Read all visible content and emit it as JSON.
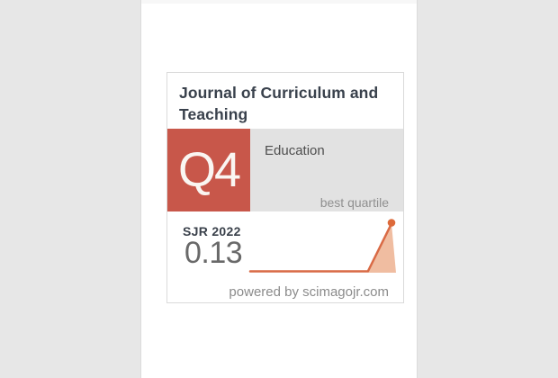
{
  "colors": {
    "page_bg": "#e7e7e7",
    "strip_bg": "#ffffff",
    "strip_border": "#dcdcdc",
    "card_border": "#dadada",
    "accent_red": "#c8574a",
    "quartile_bg": "#e2e2e2",
    "title_color": "#39414c",
    "category_color": "#4e4e4e",
    "caption_color": "#909090",
    "sjr_label_color": "#3a414b",
    "sjr_value_color": "#696969",
    "footer_color": "#8b8b8b",
    "line_orange": "#d96a45",
    "dot_orange": "#dd6a3a",
    "fill_peach": "#f0bda1"
  },
  "badge": {
    "journal_title": "Journal of Curriculum and Teaching",
    "quartile_label": "Q4",
    "category": "Education",
    "quartile_caption": "best quartile",
    "sjr_label": "SJR 2022",
    "sjr_value": "0.13",
    "footer": "powered by scimagojr.com"
  },
  "chart_data": {
    "type": "area",
    "title": "SJR sparkline trend",
    "values": [
      0,
      0,
      0,
      0,
      0,
      0,
      0.13
    ],
    "final_value_label": "0.13",
    "final_year_label": "2022",
    "ylim": [
      0,
      0.13
    ],
    "grid": false,
    "legend": false,
    "line_color": "#d96a45",
    "marker": "dot-on-last-point"
  }
}
